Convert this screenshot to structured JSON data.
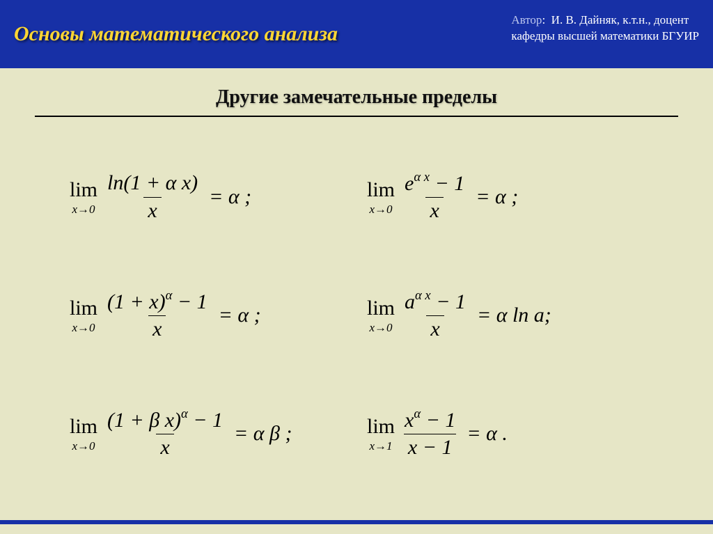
{
  "header": {
    "title": "Основы математического анализа",
    "author_label": "Автор",
    "author_name": "И. В. Дайняк,  к.т.н., доцент",
    "author_dept": "кафедры высшей математики БГУИР"
  },
  "subtitle": "Другие замечательные пределы",
  "limits": {
    "cells": [
      {
        "sub": "x→0",
        "num": "ln(1 + α x)",
        "den": "x",
        "rhs": "= α ;"
      },
      {
        "sub": "x→0",
        "num": "e^{α x} − 1",
        "den": "x",
        "rhs": "= α ;"
      },
      {
        "sub": "x→0",
        "num": "(1 + x)^{α} − 1",
        "den": "x",
        "rhs": "= α ;"
      },
      {
        "sub": "x→0",
        "num": "a^{α x} − 1",
        "den": "x",
        "rhs": "= α ln a;"
      },
      {
        "sub": "x→0",
        "num": "(1 + β x)^{α} − 1",
        "den": "x",
        "rhs": "= α β ;"
      },
      {
        "sub": "x→1",
        "num": "x^{α} − 1",
        "den": "x − 1",
        "rhs": "= α ."
      }
    ]
  },
  "style": {
    "header_bg": "#1730a6",
    "title_color": "#ffd633",
    "body_bg": "#e6e6c6",
    "rule_color": "#000000",
    "title_fontsize": 30,
    "subtitle_fontsize": 28,
    "formula_fontsize": 30,
    "author_fontsize": 17
  }
}
